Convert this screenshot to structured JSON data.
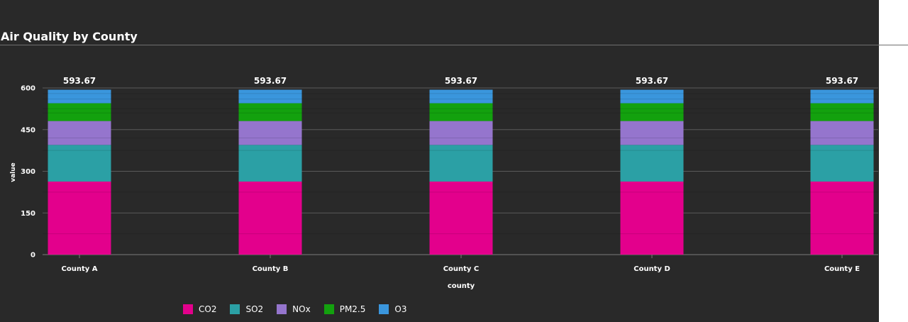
{
  "page": {
    "title": "Air Quality by County"
  },
  "colors": {
    "background": "#292929",
    "grid": "#5a5a5a",
    "text": "#ffffff"
  },
  "chart_data": {
    "type": "bar",
    "stacked": true,
    "title": "Air Quality by County",
    "xlabel": "county",
    "ylabel": "value",
    "categories": [
      "County A",
      "County B",
      "County C",
      "County D",
      "County E"
    ],
    "ylim": [
      0,
      600
    ],
    "yticks": [
      0,
      150,
      300,
      450,
      600
    ],
    "grid": true,
    "legend_position": "bottom",
    "totals": [
      "593.67",
      "593.67",
      "593.67",
      "593.67",
      "593.67"
    ],
    "series": [
      {
        "name": "CO2",
        "color": "#e3008c",
        "values": [
          263,
          263,
          263,
          263,
          263
        ]
      },
      {
        "name": "SO2",
        "color": "#2ba0a5",
        "values": [
          132,
          132,
          132,
          132,
          132
        ]
      },
      {
        "name": "NOx",
        "color": "#9575cd",
        "values": [
          86,
          86,
          86,
          86,
          86
        ]
      },
      {
        "name": "PM2.5",
        "color": "#13a10e",
        "values": [
          64,
          64,
          64,
          64,
          64
        ]
      },
      {
        "name": "O3",
        "color": "#3a96dd",
        "values": [
          48.67,
          48.67,
          48.67,
          48.67,
          48.67
        ]
      }
    ]
  }
}
